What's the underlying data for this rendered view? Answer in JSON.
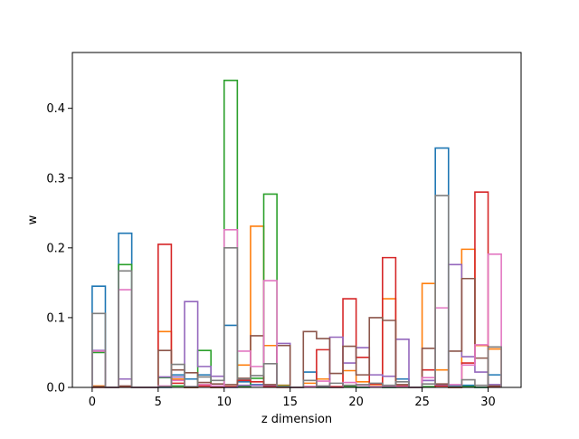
{
  "chart_data": {
    "type": "bar",
    "style": "step histogram outlines (unfilled)",
    "title": "",
    "xlabel": "z dimension",
    "ylabel": "w",
    "xlim": [
      -1.5,
      32.5
    ],
    "ylim": [
      0,
      0.48
    ],
    "xticks": [
      0,
      5,
      10,
      15,
      20,
      25,
      30
    ],
    "yticks": [
      0.0,
      0.1,
      0.2,
      0.3,
      0.4
    ],
    "ytick_labels": [
      "0.0",
      "0.1",
      "0.2",
      "0.3",
      "0.4"
    ],
    "grid": false,
    "legend": false,
    "bin_edges": [
      0,
      1,
      2,
      3,
      4,
      5,
      6,
      7,
      8,
      9,
      10,
      11,
      12,
      13,
      14,
      15,
      16,
      17,
      18,
      19,
      20,
      21,
      22,
      23,
      24,
      25,
      26,
      27,
      28,
      29,
      30,
      31
    ],
    "series": [
      {
        "color": "#1f77b4",
        "values": [
          0.145,
          0,
          0.221,
          0,
          0,
          0,
          0.018,
          0.012,
          0.018,
          0,
          0.089,
          0.008,
          0.004,
          0.06,
          0.003,
          0,
          0.022,
          0.001,
          0,
          0.002,
          0,
          0.005,
          0,
          0.012,
          0,
          0.01,
          0.343,
          0.003,
          0.003,
          0,
          0.018
        ]
      },
      {
        "color": "#ff7f0e",
        "values": [
          0.002,
          0,
          0.012,
          0,
          0,
          0.08,
          0.012,
          0,
          0.004,
          0,
          0.001,
          0.032,
          0.231,
          0.06,
          0.003,
          0,
          0.006,
          0.012,
          0,
          0.024,
          0.008,
          0.004,
          0.127,
          0.002,
          0,
          0.149,
          0.025,
          0,
          0.198,
          0.06,
          0.055
        ]
      },
      {
        "color": "#2ca02c",
        "values": [
          0.05,
          0,
          0.176,
          0,
          0,
          0.014,
          0.002,
          0,
          0.053,
          0,
          0.44,
          0.001,
          0.013,
          0.277,
          0.002,
          0,
          0.001,
          0,
          0,
          0.001,
          0,
          0.001,
          0,
          0,
          0,
          0.001,
          0.003,
          0,
          0.001,
          0,
          0.002
        ]
      },
      {
        "color": "#d62728",
        "values": [
          0,
          0,
          0.001,
          0,
          0,
          0.205,
          0.006,
          0,
          0.002,
          0,
          0.001,
          0.01,
          0.008,
          0.001,
          0,
          0,
          0.001,
          0.054,
          0.001,
          0.127,
          0.043,
          0.005,
          0.186,
          0.002,
          0,
          0.025,
          0.002,
          0,
          0.035,
          0.28,
          0.001
        ]
      },
      {
        "color": "#9467bd",
        "values": [
          0.053,
          0,
          0.012,
          0,
          0,
          0.015,
          0.015,
          0.123,
          0.03,
          0.016,
          0,
          0.003,
          0.003,
          0.003,
          0.063,
          0,
          0.001,
          0.001,
          0.072,
          0.035,
          0.057,
          0.018,
          0.016,
          0.069,
          0,
          0.01,
          0.004,
          0.176,
          0.044,
          0.022,
          0.004
        ]
      },
      {
        "color": "#8c564b",
        "values": [
          0.001,
          0,
          0.002,
          0,
          0,
          0.053,
          0.025,
          0.021,
          0.007,
          0.005,
          0.004,
          0.013,
          0.074,
          0.004,
          0.06,
          0,
          0.08,
          0.07,
          0.02,
          0.059,
          0.018,
          0.1,
          0.096,
          0.004,
          0,
          0.056,
          0.005,
          0.052,
          0.156,
          0.042,
          0.002
        ]
      },
      {
        "color": "#e377c2",
        "values": [
          0.052,
          0,
          0.14,
          0,
          0,
          0.002,
          0.01,
          0.001,
          0.004,
          0.002,
          0.226,
          0.052,
          0.03,
          0.153,
          0.001,
          0,
          0.001,
          0.009,
          0,
          0.007,
          0.003,
          0.001,
          0.002,
          0.001,
          0,
          0.014,
          0.114,
          0.004,
          0.032,
          0.061,
          0.191
        ]
      },
      {
        "color": "#7f7f7f",
        "values": [
          0.106,
          0,
          0.167,
          0,
          0,
          0.001,
          0.033,
          0.001,
          0.015,
          0.01,
          0.2,
          0.012,
          0.017,
          0.034,
          0.001,
          0,
          0.01,
          0.002,
          0.006,
          0.003,
          0.004,
          0.006,
          0.003,
          0.008,
          0,
          0.005,
          0.275,
          0.001,
          0.011,
          0.003,
          0.058
        ]
      }
    ]
  }
}
